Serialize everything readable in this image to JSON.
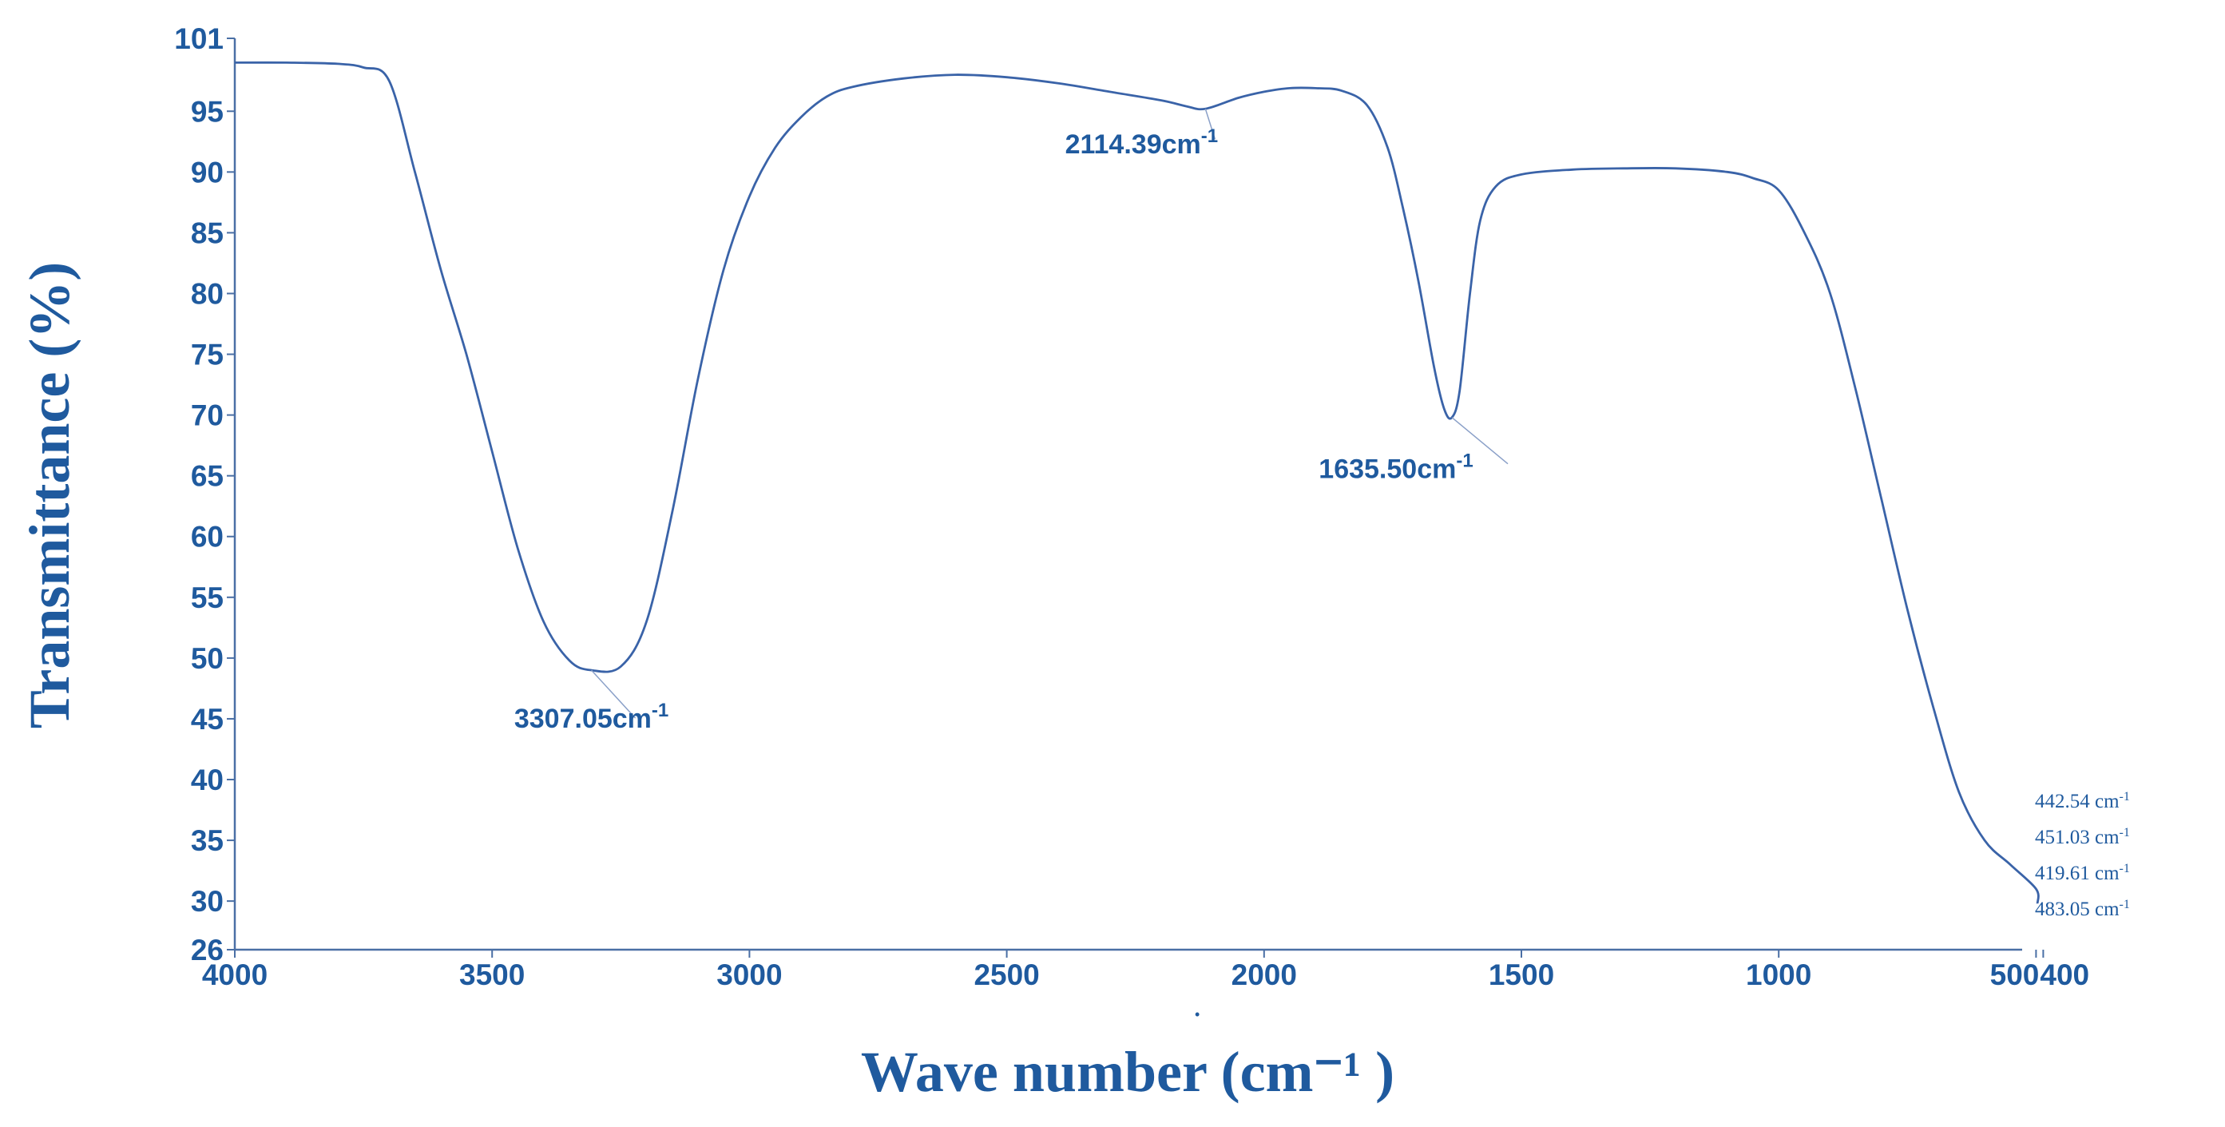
{
  "chart_data": {
    "type": "line",
    "title": "",
    "xlabel": "Wave number (cm⁻¹ )",
    "ylabel": "Transmittance (%)",
    "xlim": [
      4000,
      400
    ],
    "ylim": [
      26,
      101
    ],
    "x_ticks": [
      {
        "value": 4000,
        "label": "4000"
      },
      {
        "value": 3500,
        "label": "3500"
      },
      {
        "value": 3000,
        "label": "3000"
      },
      {
        "value": 2500,
        "label": "2500"
      },
      {
        "value": 2000,
        "label": "2000"
      },
      {
        "value": 1500,
        "label": "1500"
      },
      {
        "value": 1000,
        "label": "1000"
      },
      {
        "value": 500,
        "label": "500"
      },
      {
        "value": 400,
        "label": "400"
      }
    ],
    "y_ticks": [
      {
        "value": 101,
        "label": "101"
      },
      {
        "value": 95,
        "label": "95"
      },
      {
        "value": 90,
        "label": "90"
      },
      {
        "value": 85,
        "label": "85"
      },
      {
        "value": 80,
        "label": "80"
      },
      {
        "value": 75,
        "label": "75"
      },
      {
        "value": 70,
        "label": "70"
      },
      {
        "value": 65,
        "label": "65"
      },
      {
        "value": 60,
        "label": "60"
      },
      {
        "value": 55,
        "label": "55"
      },
      {
        "value": 50,
        "label": "50"
      },
      {
        "value": 45,
        "label": "45"
      },
      {
        "value": 40,
        "label": "40"
      },
      {
        "value": 35,
        "label": "35"
      },
      {
        "value": 30,
        "label": "30"
      },
      {
        "value": 26,
        "label": "26"
      }
    ],
    "series": [
      {
        "name": "FTIR spectrum",
        "color": "#3a63a8",
        "points": [
          [
            4000,
            99.0
          ],
          [
            3900,
            99.0
          ],
          [
            3800,
            98.9
          ],
          [
            3750,
            98.6
          ],
          [
            3700,
            97.5
          ],
          [
            3650,
            90.0
          ],
          [
            3600,
            82.0
          ],
          [
            3550,
            75.0
          ],
          [
            3500,
            67.0
          ],
          [
            3450,
            59.0
          ],
          [
            3400,
            53.0
          ],
          [
            3350,
            49.8
          ],
          [
            3307,
            49.0
          ],
          [
            3250,
            49.3
          ],
          [
            3200,
            53.0
          ],
          [
            3150,
            62.0
          ],
          [
            3100,
            73.0
          ],
          [
            3050,
            82.0
          ],
          [
            3000,
            88.0
          ],
          [
            2950,
            92.0
          ],
          [
            2900,
            94.5
          ],
          [
            2850,
            96.2
          ],
          [
            2800,
            97.0
          ],
          [
            2700,
            97.7
          ],
          [
            2600,
            98.0
          ],
          [
            2500,
            97.8
          ],
          [
            2400,
            97.3
          ],
          [
            2300,
            96.6
          ],
          [
            2200,
            95.9
          ],
          [
            2150,
            95.4
          ],
          [
            2114,
            95.2
          ],
          [
            2050,
            96.1
          ],
          [
            2000,
            96.6
          ],
          [
            1950,
            96.9
          ],
          [
            1900,
            96.9
          ],
          [
            1850,
            96.7
          ],
          [
            1800,
            95.5
          ],
          [
            1760,
            92.0
          ],
          [
            1730,
            87.0
          ],
          [
            1700,
            81.0
          ],
          [
            1670,
            74.0
          ],
          [
            1650,
            70.5
          ],
          [
            1635,
            69.8
          ],
          [
            1620,
            72.0
          ],
          [
            1600,
            80.0
          ],
          [
            1580,
            86.0
          ],
          [
            1550,
            88.8
          ],
          [
            1500,
            89.8
          ],
          [
            1400,
            90.2
          ],
          [
            1300,
            90.3
          ],
          [
            1200,
            90.3
          ],
          [
            1100,
            90.0
          ],
          [
            1050,
            89.5
          ],
          [
            1000,
            88.5
          ],
          [
            950,
            85.0
          ],
          [
            900,
            80.0
          ],
          [
            850,
            72.0
          ],
          [
            800,
            63.0
          ],
          [
            750,
            54.0
          ],
          [
            700,
            46.0
          ],
          [
            650,
            39.0
          ],
          [
            600,
            35.0
          ],
          [
            550,
            33.0
          ],
          [
            500,
            31.0
          ],
          [
            480,
            29.8
          ]
        ]
      }
    ],
    "annotations": [
      {
        "text": "3307.05",
        "unit": "cm",
        "sup": "-1",
        "x": 3307,
        "y": 49.0
      },
      {
        "text": "2114.39",
        "unit": "cm",
        "sup": "-1",
        "x": 2114,
        "y": 95.2
      },
      {
        "text": "1635.50",
        "unit": "cm",
        "sup": "-1",
        "x": 1635,
        "y": 69.8
      }
    ],
    "side_labels": [
      {
        "text": "442.54 cm",
        "sup": "-1"
      },
      {
        "text": "451.03 cm",
        "sup": "-1"
      },
      {
        "text": "419.61 cm",
        "sup": "-1"
      },
      {
        "text": "483.05 cm",
        "sup": "-1"
      }
    ]
  }
}
